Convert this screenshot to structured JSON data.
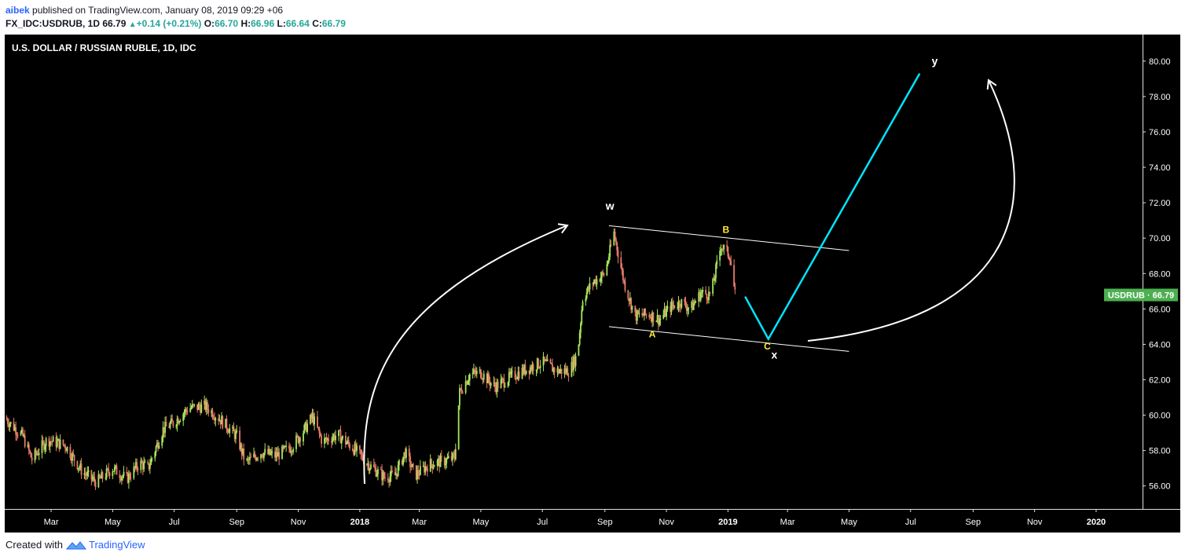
{
  "header": {
    "author": "aibek",
    "published": "published on TradingView.com, January 08, 2019 09:29 +06",
    "symbol_line": {
      "symbol": "FX_IDC:USDRUB, 1D",
      "last": "66.79",
      "change": "+0.14 (+0.21%)",
      "o_label": "O:",
      "o": "66.70",
      "h_label": "H:",
      "h": "66.96",
      "l_label": "L:",
      "l": "66.64",
      "c_label": "C:",
      "c": "66.79"
    }
  },
  "footer": {
    "created_with": "Created with",
    "brand": "TradingView"
  },
  "colors": {
    "background": "#000000",
    "up_candle": "#a6e85c",
    "down_candle": "#e87c6a",
    "price_badge": "#4caf50",
    "wave_line": "#00e5ff",
    "channel": "#ffffff",
    "wave_label_yellow": "#ffeb3b"
  },
  "chart_data": {
    "type": "candlestick",
    "title": "U.S. DOLLAR / RUSSIAN RUBLE, 1D, IDC",
    "symbol": "USDRUB",
    "last_price": "66.79",
    "x_ticks": [
      "Mar",
      "May",
      "Jul",
      "Sep",
      "Nov",
      "2018",
      "Mar",
      "May",
      "Jul",
      "Sep",
      "Nov",
      "2019",
      "Mar",
      "May",
      "Jul",
      "Sep",
      "Nov",
      "2020"
    ],
    "y_ticks": [
      "56.00",
      "58.00",
      "60.00",
      "62.00",
      "64.00",
      "66.00",
      "68.00",
      "70.00",
      "72.00",
      "74.00",
      "76.00",
      "78.00",
      "80.00"
    ],
    "ylim": [
      54.7,
      81.5
    ],
    "xlim": [
      "2017-01-14",
      "2020-02-16"
    ],
    "price_path": [
      [
        "2017-01-15",
        59.8
      ],
      [
        "2017-02-01",
        58.8
      ],
      [
        "2017-02-10",
        57.5
      ],
      [
        "2017-02-25",
        58.6
      ],
      [
        "2017-03-15",
        58.3
      ],
      [
        "2017-04-01",
        56.8
      ],
      [
        "2017-04-15",
        56.2
      ],
      [
        "2017-05-01",
        57.0
      ],
      [
        "2017-05-15",
        56.4
      ],
      [
        "2017-05-28",
        57.3
      ],
      [
        "2017-06-05",
        57.0
      ],
      [
        "2017-06-20",
        59.2
      ],
      [
        "2017-07-01",
        59.6
      ],
      [
        "2017-07-15",
        60.4
      ],
      [
        "2017-08-01",
        60.5
      ],
      [
        "2017-08-15",
        59.8
      ],
      [
        "2017-09-01",
        58.8
      ],
      [
        "2017-09-10",
        57.3
      ],
      [
        "2017-09-25",
        57.9
      ],
      [
        "2017-10-10",
        57.7
      ],
      [
        "2017-10-25",
        58.2
      ],
      [
        "2017-11-05",
        59.0
      ],
      [
        "2017-11-15",
        59.9
      ],
      [
        "2017-11-25",
        58.5
      ],
      [
        "2017-12-10",
        58.9
      ],
      [
        "2017-12-28",
        58.0
      ],
      [
        "2018-01-10",
        57.2
      ],
      [
        "2018-01-25",
        56.5
      ],
      [
        "2018-02-05",
        56.6
      ],
      [
        "2018-02-15",
        57.9
      ],
      [
        "2018-02-25",
        56.6
      ],
      [
        "2018-03-10",
        57.2
      ],
      [
        "2018-03-25",
        57.4
      ],
      [
        "2018-04-05",
        57.6
      ],
      [
        "2018-04-10",
        61.3
      ],
      [
        "2018-04-20",
        62.3
      ],
      [
        "2018-05-01",
        62.4
      ],
      [
        "2018-05-15",
        61.6
      ],
      [
        "2018-06-01",
        62.2
      ],
      [
        "2018-06-15",
        62.6
      ],
      [
        "2018-07-01",
        63.0
      ],
      [
        "2018-07-15",
        62.5
      ],
      [
        "2018-07-28",
        62.5
      ],
      [
        "2018-08-05",
        63.5
      ],
      [
        "2018-08-10",
        66.6
      ],
      [
        "2018-08-20",
        67.5
      ],
      [
        "2018-09-01",
        68.0
      ],
      [
        "2018-09-10",
        70.3
      ],
      [
        "2018-09-20",
        67.5
      ],
      [
        "2018-10-01",
        65.6
      ],
      [
        "2018-10-15",
        65.7
      ],
      [
        "2018-10-25",
        65.4
      ],
      [
        "2018-11-05",
        66.1
      ],
      [
        "2018-11-15",
        66.4
      ],
      [
        "2018-11-25",
        66.0
      ],
      [
        "2018-12-05",
        66.9
      ],
      [
        "2018-12-15",
        66.8
      ],
      [
        "2018-12-25",
        69.6
      ],
      [
        "2019-01-03",
        69.0
      ],
      [
        "2019-01-08",
        66.8
      ]
    ],
    "drawings": {
      "channel": [
        [
          [
            "2018-09-05",
            70.7
          ],
          [
            "2019-05-01",
            69.3
          ]
        ],
        [
          [
            "2018-09-05",
            65.0
          ],
          [
            "2019-05-01",
            63.6
          ]
        ]
      ],
      "wave": [
        [
          "2019-01-18",
          66.7
        ],
        [
          "2019-02-10",
          64.3
        ],
        [
          "2019-07-10",
          79.3
        ]
      ],
      "labels": [
        {
          "text": "w",
          "x": "2018-09-06",
          "y": 71.6,
          "color": "white"
        },
        {
          "text": "A",
          "x": "2018-10-18",
          "y": 64.4,
          "color": "yellow"
        },
        {
          "text": "B",
          "x": "2018-12-30",
          "y": 70.3,
          "color": "yellow"
        },
        {
          "text": "C",
          "x": "2019-02-09",
          "y": 63.7,
          "color": "yellow"
        },
        {
          "text": "x",
          "x": "2019-02-16",
          "y": 63.2,
          "color": "white"
        },
        {
          "text": "y",
          "x": "2019-07-25",
          "y": 79.8,
          "color": "white"
        }
      ]
    }
  }
}
